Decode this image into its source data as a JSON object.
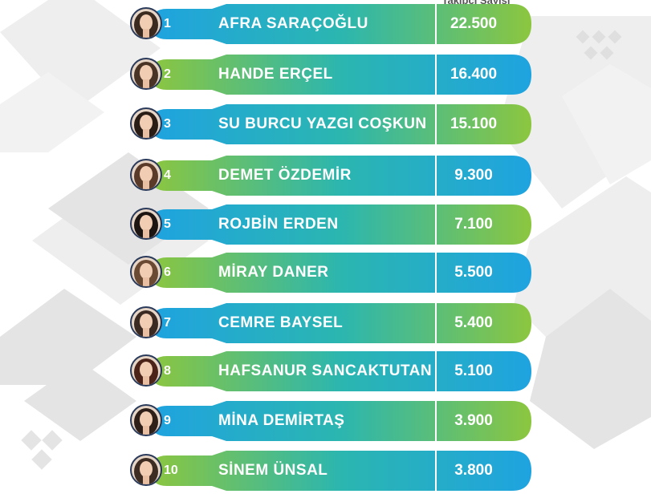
{
  "header": {
    "value_label": "Takipçi Sayısı"
  },
  "colors": {
    "green": "#8cc63f",
    "blue": "#1fa3e0",
    "mid": "#2bb6b0"
  },
  "chart_data": {
    "type": "bar",
    "categories": [
      "AFRA SARAÇOĞLU",
      "HANDE ERÇEL",
      "SU BURCU YAZGI COŞKUN",
      "DEMET ÖZDEMİR",
      "ROJBİN ERDEN",
      "MİRAY DANER",
      "CEMRE BAYSEL",
      "HAFSANUR SANCAKTUTAN",
      "MİNA DEMİRTAŞ",
      "SİNEM ÜNSAL"
    ],
    "values": [
      22500,
      16400,
      15100,
      9300,
      7100,
      5500,
      5400,
      5100,
      3900,
      3800
    ],
    "ranks": [
      "1",
      "2",
      "3",
      "4",
      "5",
      "6",
      "7",
      "8",
      "9",
      "10"
    ],
    "value_labels": [
      "22.500",
      "16.400",
      "15.100",
      "9.300",
      "7.100",
      "5.500",
      "5.400",
      "5.100",
      "3.900",
      "3.800"
    ]
  }
}
